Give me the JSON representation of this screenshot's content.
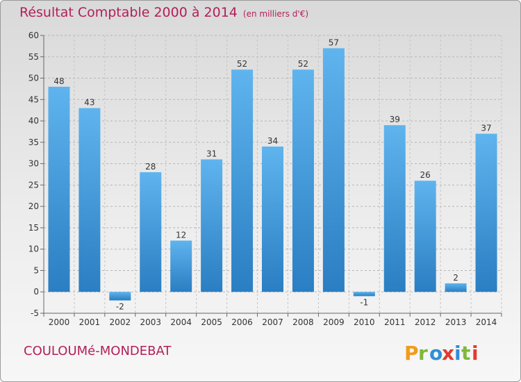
{
  "header": {
    "title": "Résultat Comptable 2000 à 2014",
    "subtitle": "(en milliers d'€)"
  },
  "footer": {
    "commune": "COULOUMé-MONDEBAT",
    "brand": "Proxiti"
  },
  "colors": {
    "title": "#b31f57",
    "bar_light": "#5fb4ee",
    "bar_dark": "#2a7ec2"
  },
  "chart_data": {
    "type": "bar",
    "title": "Résultat Comptable 2000 à 2014",
    "subtitle": "(en milliers d'€)",
    "xlabel": "",
    "ylabel": "",
    "categories": [
      "2000",
      "2001",
      "2002",
      "2003",
      "2004",
      "2005",
      "2006",
      "2007",
      "2008",
      "2009",
      "2010",
      "2011",
      "2012",
      "2013",
      "2014"
    ],
    "values": [
      48,
      43,
      -2,
      28,
      12,
      31,
      52,
      34,
      52,
      57,
      -1,
      39,
      26,
      2,
      37
    ],
    "ylim": [
      -5,
      60
    ],
    "yticks": [
      -5,
      0,
      5,
      10,
      15,
      20,
      25,
      30,
      35,
      40,
      45,
      50,
      55,
      60
    ],
    "grid": true
  }
}
